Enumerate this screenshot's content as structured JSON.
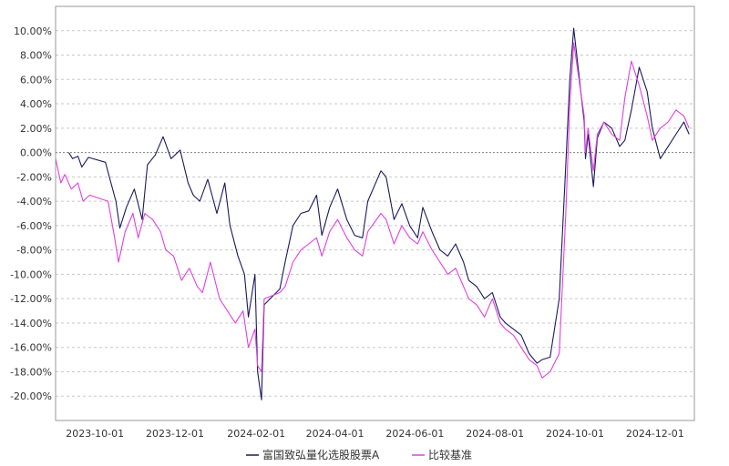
{
  "chart_data": {
    "type": "line",
    "title": "",
    "xlabel": "",
    "ylabel": "",
    "x_range": [
      "2023-09-01",
      "2024-12-31"
    ],
    "ylim": [
      -22,
      12
    ],
    "y_ticks": [
      -20,
      -18,
      -16,
      -14,
      -12,
      -10,
      -8,
      -6,
      -4,
      -2,
      0,
      2,
      4,
      6,
      8,
      10
    ],
    "y_tick_labels": [
      "-20.00%",
      "-18.00%",
      "-16.00%",
      "-14.00%",
      "-12.00%",
      "-10.00%",
      "-8.00%",
      "-6.00%",
      "-4.00%",
      "-2.00%",
      "0.00%",
      "2.00%",
      "4.00%",
      "6.00%",
      "8.00%",
      "10.00%"
    ],
    "x_ticks": [
      "2023-10-01",
      "2023-12-01",
      "2024-02-01",
      "2024-04-01",
      "2024-06-01",
      "2024-08-01",
      "2024-10-01",
      "2024-12-01"
    ],
    "grid": true,
    "legend_position": "bottom",
    "series": [
      {
        "name": "富国致弘量化选股股票A",
        "color": "#1a1a5e",
        "x": [
          "2023-09-11",
          "2023-09-14",
          "2023-09-18",
          "2023-09-21",
          "2023-09-26",
          "2023-10-09",
          "2023-10-12",
          "2023-10-17",
          "2023-10-20",
          "2023-10-25",
          "2023-10-31",
          "2023-11-06",
          "2023-11-10",
          "2023-11-16",
          "2023-11-22",
          "2023-11-28",
          "2023-12-05",
          "2023-12-11",
          "2023-12-15",
          "2023-12-20",
          "2023-12-26",
          "2024-01-02",
          "2024-01-08",
          "2024-01-12",
          "2024-01-18",
          "2024-01-23",
          "2024-01-26",
          "2024-01-31",
          "2024-02-02",
          "2024-02-05",
          "2024-02-07",
          "2024-02-19",
          "2024-02-23",
          "2024-02-29",
          "2024-03-06",
          "2024-03-12",
          "2024-03-18",
          "2024-03-22",
          "2024-03-28",
          "2024-04-03",
          "2024-04-10",
          "2024-04-16",
          "2024-04-22",
          "2024-04-26",
          "2024-05-06",
          "2024-05-10",
          "2024-05-16",
          "2024-05-22",
          "2024-05-28",
          "2024-06-03",
          "2024-06-07",
          "2024-06-14",
          "2024-06-20",
          "2024-06-26",
          "2024-07-02",
          "2024-07-08",
          "2024-07-12",
          "2024-07-18",
          "2024-07-24",
          "2024-07-30",
          "2024-08-05",
          "2024-08-09",
          "2024-08-15",
          "2024-08-21",
          "2024-08-27",
          "2024-09-02",
          "2024-09-06",
          "2024-09-12",
          "2024-09-19",
          "2024-09-24",
          "2024-09-27",
          "2024-09-30",
          "2024-10-08",
          "2024-10-09",
          "2024-10-11",
          "2024-10-15",
          "2024-10-18",
          "2024-10-23",
          "2024-10-29",
          "2024-11-04",
          "2024-11-08",
          "2024-11-13",
          "2024-11-19",
          "2024-11-25",
          "2024-11-29",
          "2024-12-05",
          "2024-12-11",
          "2024-12-17",
          "2024-12-23",
          "2024-12-27"
        ],
        "values": [
          0.0,
          -0.5,
          -0.3,
          -1.2,
          -0.4,
          -0.8,
          -2.0,
          -4.0,
          -6.2,
          -4.5,
          -3.0,
          -5.5,
          -1.0,
          -0.2,
          1.3,
          -0.5,
          0.2,
          -2.5,
          -3.5,
          -4.0,
          -2.2,
          -5.0,
          -2.5,
          -6.0,
          -8.5,
          -10.0,
          -13.5,
          -10.0,
          -18.0,
          -20.3,
          -12.5,
          -11.2,
          -9.0,
          -6.0,
          -5.0,
          -4.8,
          -3.5,
          -6.8,
          -4.5,
          -3.0,
          -5.5,
          -6.8,
          -7.0,
          -4.0,
          -1.5,
          -2.0,
          -5.5,
          -4.2,
          -6.0,
          -7.0,
          -4.5,
          -6.5,
          -8.0,
          -8.5,
          -7.5,
          -9.0,
          -10.5,
          -11.0,
          -12.0,
          -11.5,
          -13.5,
          -14.0,
          -14.5,
          -15.0,
          -16.5,
          -17.3,
          -17.0,
          -16.8,
          -12.0,
          -1.0,
          6.0,
          10.2,
          2.5,
          -0.5,
          1.5,
          -2.8,
          1.2,
          2.5,
          2.0,
          0.5,
          1.0,
          3.5,
          7.0,
          5.0,
          2.0,
          -0.5,
          0.5,
          1.5,
          2.5,
          1.5
        ]
      },
      {
        "name": "比较基准",
        "color": "#e040e0",
        "x": [
          "2023-09-01",
          "2023-09-05",
          "2023-09-08",
          "2023-09-13",
          "2023-09-18",
          "2023-09-22",
          "2023-09-27",
          "2023-10-11",
          "2023-10-16",
          "2023-10-19",
          "2023-10-24",
          "2023-10-30",
          "2023-11-03",
          "2023-11-08",
          "2023-11-14",
          "2023-11-20",
          "2023-11-24",
          "2023-11-30",
          "2023-12-06",
          "2023-12-12",
          "2023-12-18",
          "2023-12-22",
          "2023-12-28",
          "2024-01-04",
          "2024-01-10",
          "2024-01-16",
          "2024-01-22",
          "2024-01-26",
          "2024-01-31",
          "2024-02-02",
          "2024-02-05",
          "2024-02-07",
          "2024-02-19",
          "2024-02-23",
          "2024-02-29",
          "2024-03-06",
          "2024-03-12",
          "2024-03-18",
          "2024-03-22",
          "2024-03-28",
          "2024-04-03",
          "2024-04-10",
          "2024-04-16",
          "2024-04-22",
          "2024-04-26",
          "2024-05-06",
          "2024-05-10",
          "2024-05-16",
          "2024-05-22",
          "2024-05-28",
          "2024-06-03",
          "2024-06-07",
          "2024-06-14",
          "2024-06-20",
          "2024-06-26",
          "2024-07-02",
          "2024-07-08",
          "2024-07-12",
          "2024-07-18",
          "2024-07-24",
          "2024-07-30",
          "2024-08-05",
          "2024-08-09",
          "2024-08-15",
          "2024-08-21",
          "2024-08-27",
          "2024-09-02",
          "2024-09-06",
          "2024-09-12",
          "2024-09-19",
          "2024-09-24",
          "2024-09-27",
          "2024-09-30",
          "2024-10-08",
          "2024-10-09",
          "2024-10-11",
          "2024-10-15",
          "2024-10-18",
          "2024-10-23",
          "2024-10-29",
          "2024-11-04",
          "2024-11-08",
          "2024-11-13",
          "2024-11-19",
          "2024-11-25",
          "2024-11-29",
          "2024-12-05",
          "2024-12-11",
          "2024-12-17",
          "2024-12-23",
          "2024-12-27"
        ],
        "values": [
          -0.5,
          -2.5,
          -1.8,
          -3.0,
          -2.5,
          -4.0,
          -3.5,
          -4.0,
          -7.0,
          -9.0,
          -6.5,
          -5.0,
          -7.0,
          -5.0,
          -5.5,
          -6.5,
          -8.0,
          -8.5,
          -10.5,
          -9.5,
          -11.0,
          -11.5,
          -9.0,
          -12.0,
          -13.0,
          -14.0,
          -13.0,
          -16.0,
          -14.5,
          -17.5,
          -18.0,
          -12.0,
          -11.5,
          -11.0,
          -9.0,
          -8.0,
          -7.5,
          -7.0,
          -8.5,
          -6.5,
          -5.5,
          -7.0,
          -8.0,
          -8.5,
          -6.5,
          -5.0,
          -5.5,
          -7.5,
          -6.0,
          -7.0,
          -7.5,
          -6.5,
          -8.0,
          -9.0,
          -10.0,
          -9.5,
          -11.0,
          -12.0,
          -12.5,
          -13.5,
          -12.0,
          -14.0,
          -14.5,
          -15.0,
          -16.0,
          -17.0,
          -17.5,
          -18.5,
          -18.0,
          -16.5,
          -5.0,
          4.0,
          9.0,
          3.0,
          0.0,
          2.0,
          -1.5,
          1.5,
          2.5,
          1.5,
          1.0,
          4.5,
          7.5,
          5.5,
          3.0,
          1.0,
          2.0,
          2.5,
          3.5,
          3.0,
          2.0
        ]
      }
    ]
  }
}
